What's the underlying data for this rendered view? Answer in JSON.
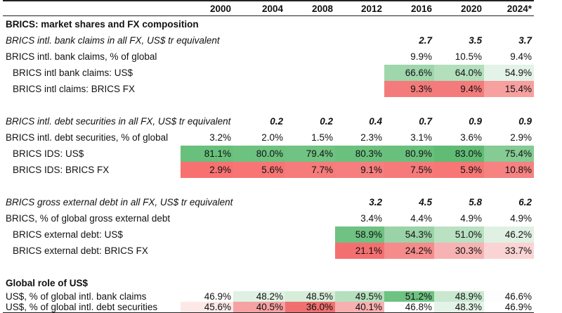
{
  "columns": [
    "2000",
    "2004",
    "2008",
    "2012",
    "2016",
    "2020",
    "2024*"
  ],
  "rows": [
    {
      "type": "section",
      "label": "BRICS: market shares and FX composition",
      "values": [
        "",
        "",
        "",
        "",
        "",
        "",
        ""
      ]
    },
    {
      "type": "italic",
      "label": "BRICS intl. bank claims in all FX, US$ tr equivalent",
      "values": [
        "",
        "",
        "",
        "",
        "2.7",
        "3.5",
        "3.7"
      ]
    },
    {
      "type": "plain",
      "label": "BRICS intl. bank claims, % of global",
      "values": [
        "",
        "",
        "",
        "",
        "9.9%",
        "10.5%",
        "9.4%"
      ]
    },
    {
      "type": "indent",
      "label": "BRICS intl bank claims: US$",
      "values": [
        "",
        "",
        "",
        "",
        "66.6%",
        "64.0%",
        "54.9%"
      ],
      "colors": [
        "",
        "",
        "",
        "",
        "#9fd6ac",
        "#b3dfbd",
        "#e4f3e7"
      ]
    },
    {
      "type": "indent",
      "label": "BRICS intl claims: BRICS FX",
      "values": [
        "",
        "",
        "",
        "",
        "9.3%",
        "9.4%",
        "15.4%"
      ],
      "colors": [
        "",
        "",
        "",
        "",
        "#f47b7b",
        "#f47b7b",
        "#f7a0a0"
      ]
    },
    {
      "type": "blank",
      "label": "",
      "values": [
        "",
        "",
        "",
        "",
        "",
        "",
        ""
      ]
    },
    {
      "type": "italic",
      "label": "BRICS intl. debt securities in all FX, US$ tr equivalent",
      "values": [
        "0.2",
        "0.2",
        "0.4",
        "0.7",
        "0.9",
        "0.9",
        ""
      ],
      "shift": true
    },
    {
      "type": "plain",
      "label": "BRICS intl. debt securities, % of global",
      "values": [
        "3.2%",
        "2.0%",
        "1.5%",
        "2.3%",
        "3.1%",
        "3.6%",
        "2.9%"
      ]
    },
    {
      "type": "indent",
      "label": "BRICS IDS: US$",
      "values": [
        "81.1%",
        "80.0%",
        "79.4%",
        "80.3%",
        "80.9%",
        "83.0%",
        "75.4%"
      ],
      "colors": [
        "#68c07c",
        "#6dc280",
        "#70c383",
        "#6ac17e",
        "#69c07d",
        "#60bc75",
        "#84cb94"
      ]
    },
    {
      "type": "indent",
      "label": "BRICS IDS: BRICS FX",
      "values": [
        "2.9%",
        "5.6%",
        "7.7%",
        "9.1%",
        "7.5%",
        "5.9%",
        "10.8%"
      ],
      "colors": [
        "#f87171",
        "#f77575",
        "#f67b7b",
        "#f67e7e",
        "#f67a7a",
        "#f77676",
        "#f68282"
      ]
    },
    {
      "type": "blank",
      "label": "",
      "values": [
        "",
        "",
        "",
        "",
        "",
        "",
        ""
      ]
    },
    {
      "type": "italic",
      "label": "BRICS gross external debt in all FX, US$ tr equivalent",
      "values": [
        "",
        "",
        "",
        "3.2",
        "4.5",
        "5.8",
        "6.2"
      ]
    },
    {
      "type": "plain",
      "label": "BRICS, % of global gross external debt",
      "values": [
        "",
        "",
        "",
        "3.4%",
        "4.4%",
        "4.9%",
        "4.9%"
      ]
    },
    {
      "type": "indent",
      "label": "BRICS external debt: US$",
      "values": [
        "",
        "",
        "",
        "58.9%",
        "54.3%",
        "51.0%",
        "46.2%"
      ],
      "colors": [
        "",
        "",
        "",
        "#6fc282",
        "#9ad3a7",
        "#b9e1c2",
        "#e0f1e4"
      ]
    },
    {
      "type": "indent",
      "label": "BRICS external debt: BRICS FX",
      "values": [
        "",
        "",
        "",
        "21.1%",
        "24.2%",
        "30.3%",
        "33.7%"
      ],
      "colors": [
        "",
        "",
        "",
        "#f47070",
        "#f58b8b",
        "#f7b3b3",
        "#fad4d4"
      ]
    },
    {
      "type": "blank",
      "label": "",
      "values": [
        "",
        "",
        "",
        "",
        "",
        "",
        ""
      ]
    },
    {
      "type": "section",
      "label": "Global role of US$",
      "values": [
        "",
        "",
        "",
        "",
        "",
        "",
        ""
      ]
    },
    {
      "type": "plain",
      "label": "US$, % of global intl. bank claims",
      "values": [
        "46.9%",
        "48.2%",
        "48.5%",
        "49.5%",
        "51.2%",
        "48.9%",
        "46.6%"
      ],
      "colors": [
        "#ffffff",
        "#dff1e3",
        "#d6edda",
        "#b4e0be",
        "#6ec282",
        "#c8e8cf",
        "#fdfdfd"
      ]
    },
    {
      "type": "plain",
      "label": "US$, % of global intl. debt securities",
      "values": [
        "45.6%",
        "40.5%",
        "36.0%",
        "40.1%",
        "46.8%",
        "48.3%",
        "46.9%"
      ],
      "colors": [
        "#fde8e8",
        "#f6a2a2",
        "#f07070",
        "#f7b0b0",
        "#ffffff",
        "#e4f3e7",
        "#ffffff"
      ]
    }
  ]
}
